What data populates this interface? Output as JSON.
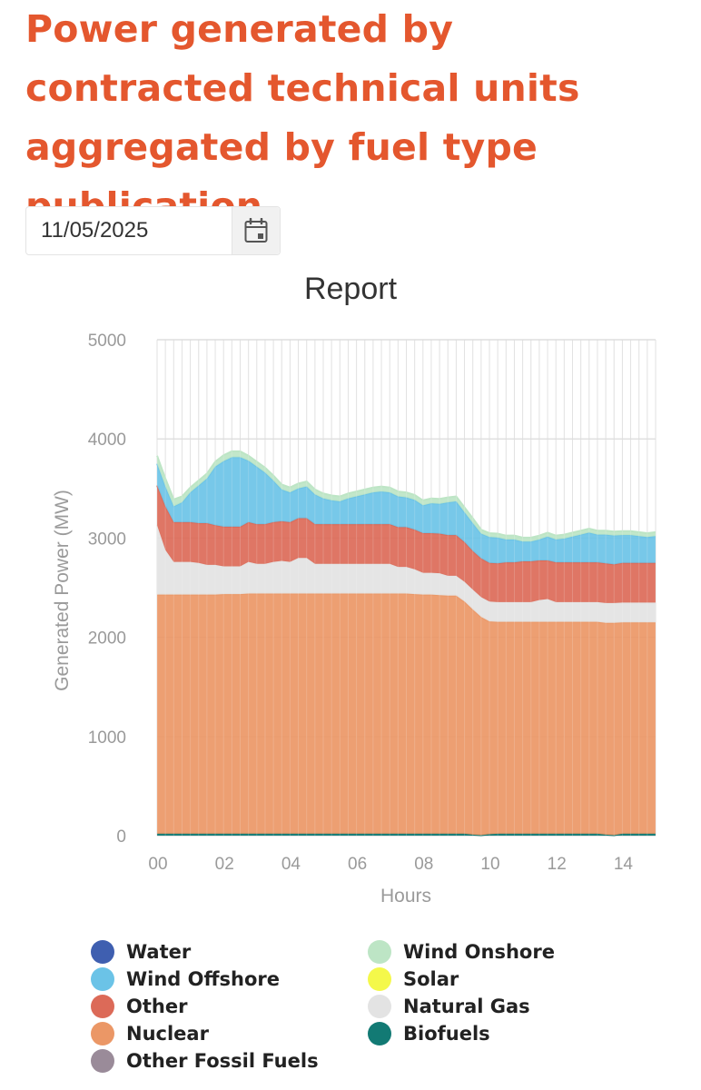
{
  "page": {
    "title": "Power generated by contracted technical units aggregated by fuel type publication"
  },
  "date_picker": {
    "value": "11/05/2025"
  },
  "chart_data": {
    "type": "area",
    "stacked": true,
    "title": "Report",
    "xlabel": "Hours",
    "ylabel": "Generated Power (MW)",
    "ylim": [
      0,
      5000
    ],
    "yticks": [
      0,
      1000,
      2000,
      3000,
      4000,
      5000
    ],
    "xlim": [
      0,
      15
    ],
    "xticks": [
      0,
      2,
      4,
      6,
      8,
      10,
      12,
      14
    ],
    "xtick_labels": [
      "00",
      "02",
      "04",
      "06",
      "08",
      "10",
      "12",
      "14"
    ],
    "x": [
      0,
      0.25,
      0.5,
      0.75,
      1,
      1.25,
      1.5,
      1.75,
      2,
      2.25,
      2.5,
      2.75,
      3,
      3.25,
      3.5,
      3.75,
      4,
      4.25,
      4.5,
      4.75,
      5,
      5.25,
      5.5,
      5.75,
      6,
      6.25,
      6.5,
      6.75,
      7,
      7.25,
      7.5,
      7.75,
      8,
      8.25,
      8.5,
      8.75,
      9,
      9.25,
      9.5,
      9.75,
      10,
      10.25,
      10.5,
      10.75,
      11,
      11.25,
      11.5,
      11.75,
      12,
      12.25,
      12.5,
      12.75,
      13,
      13.25,
      13.5,
      13.75,
      14,
      14.25,
      14.5,
      14.75,
      15
    ],
    "series": [
      {
        "name": "Water",
        "color": "#3f5fb0",
        "values": [
          0,
          0,
          0,
          0,
          0,
          0,
          0,
          0,
          0,
          0,
          0,
          0,
          0,
          0,
          0,
          0,
          0,
          0,
          0,
          0,
          0,
          0,
          0,
          0,
          0,
          0,
          0,
          0,
          0,
          0,
          0,
          0,
          0,
          0,
          0,
          0,
          0,
          0,
          0,
          0,
          0,
          0,
          0,
          0,
          0,
          0,
          0,
          0,
          0,
          0,
          0,
          0,
          0,
          0,
          0,
          0,
          0,
          0,
          0,
          0,
          0
        ]
      },
      {
        "name": "Biofuels",
        "color": "#127a74",
        "values": [
          20,
          20,
          20,
          20,
          20,
          20,
          20,
          20,
          20,
          20,
          20,
          20,
          20,
          20,
          20,
          20,
          20,
          20,
          20,
          20,
          20,
          20,
          20,
          20,
          20,
          20,
          20,
          20,
          20,
          20,
          20,
          20,
          20,
          20,
          20,
          20,
          20,
          20,
          10,
          5,
          15,
          20,
          20,
          20,
          20,
          20,
          20,
          20,
          20,
          20,
          20,
          20,
          20,
          20,
          10,
          5,
          20,
          20,
          20,
          20,
          20
        ]
      },
      {
        "name": "Other Fossil Fuels",
        "color": "#9a8b99",
        "values": [
          0,
          0,
          0,
          0,
          0,
          0,
          0,
          0,
          0,
          0,
          0,
          0,
          0,
          0,
          0,
          0,
          0,
          0,
          0,
          0,
          0,
          0,
          0,
          0,
          0,
          0,
          0,
          0,
          0,
          0,
          0,
          0,
          0,
          0,
          0,
          0,
          0,
          0,
          0,
          0,
          0,
          0,
          0,
          0,
          0,
          0,
          0,
          0,
          0,
          0,
          0,
          0,
          0,
          0,
          0,
          0,
          0,
          0,
          0,
          0,
          0
        ]
      },
      {
        "name": "Nuclear",
        "color": "#eb9766",
        "values": [
          2410,
          2410,
          2410,
          2410,
          2410,
          2410,
          2410,
          2410,
          2415,
          2415,
          2415,
          2420,
          2420,
          2420,
          2420,
          2420,
          2420,
          2420,
          2420,
          2420,
          2420,
          2420,
          2420,
          2420,
          2420,
          2420,
          2420,
          2420,
          2420,
          2420,
          2420,
          2415,
          2410,
          2410,
          2405,
          2400,
          2400,
          2340,
          2270,
          2200,
          2145,
          2135,
          2135,
          2135,
          2135,
          2135,
          2135,
          2135,
          2135,
          2135,
          2135,
          2135,
          2135,
          2135,
          2135,
          2140,
          2130,
          2130,
          2130,
          2130,
          2130
        ]
      },
      {
        "name": "Natural Gas",
        "color": "#e3e3e3",
        "values": [
          700,
          450,
          330,
          330,
          330,
          320,
          300,
          300,
          280,
          280,
          280,
          320,
          300,
          300,
          320,
          330,
          320,
          360,
          360,
          300,
          300,
          300,
          300,
          300,
          300,
          300,
          300,
          300,
          300,
          270,
          270,
          250,
          220,
          220,
          220,
          200,
          200,
          200,
          200,
          200,
          200,
          200,
          200,
          200,
          200,
          200,
          220,
          230,
          200,
          200,
          200,
          200,
          200,
          200,
          200,
          200,
          200,
          200,
          200,
          200,
          200
        ]
      },
      {
        "name": "Other",
        "color": "#dc6a58",
        "values": [
          400,
          440,
          400,
          400,
          400,
          400,
          420,
          400,
          400,
          400,
          400,
          400,
          400,
          400,
          400,
          400,
          400,
          400,
          400,
          400,
          400,
          400,
          400,
          400,
          400,
          400,
          400,
          400,
          400,
          400,
          400,
          400,
          400,
          400,
          400,
          410,
          410,
          400,
          390,
          390,
          390,
          390,
          400,
          400,
          410,
          410,
          400,
          390,
          400,
          400,
          400,
          400,
          400,
          400,
          400,
          390,
          400,
          400,
          400,
          400,
          400
        ]
      },
      {
        "name": "Wind Offshore",
        "color": "#6bc3e7",
        "values": [
          220,
          200,
          160,
          200,
          300,
          380,
          450,
          590,
          660,
          700,
          700,
          620,
          580,
          520,
          420,
          320,
          300,
          300,
          320,
          300,
          260,
          240,
          230,
          260,
          280,
          300,
          320,
          330,
          320,
          310,
          300,
          300,
          280,
          300,
          300,
          330,
          340,
          300,
          280,
          250,
          260,
          260,
          230,
          230,
          200,
          200,
          210,
          240,
          230,
          240,
          260,
          280,
          300,
          280,
          290,
          290,
          280,
          280,
          270,
          260,
          270
        ]
      },
      {
        "name": "Wind Onshore",
        "color": "#bde5c5",
        "values": [
          80,
          80,
          70,
          60,
          50,
          50,
          50,
          50,
          60,
          60,
          60,
          50,
          50,
          50,
          50,
          50,
          50,
          50,
          50,
          50,
          50,
          50,
          50,
          50,
          50,
          50,
          50,
          50,
          50,
          50,
          50,
          50,
          50,
          50,
          50,
          50,
          50,
          50,
          50,
          40,
          40,
          40,
          40,
          40,
          40,
          40,
          40,
          40,
          40,
          40,
          40,
          40,
          40,
          40,
          40,
          40,
          40,
          40,
          40,
          40,
          40
        ]
      },
      {
        "name": "Solar",
        "color": "#f4f84a",
        "values": [
          0,
          0,
          0,
          0,
          0,
          0,
          0,
          0,
          0,
          0,
          0,
          0,
          0,
          0,
          0,
          0,
          0,
          0,
          0,
          0,
          0,
          0,
          0,
          0,
          0,
          0,
          0,
          0,
          0,
          0,
          0,
          0,
          0,
          0,
          0,
          0,
          0,
          0,
          0,
          0,
          0,
          0,
          0,
          0,
          0,
          0,
          0,
          0,
          0,
          0,
          0,
          0,
          0,
          0,
          0,
          0,
          0,
          0,
          0,
          0,
          0
        ]
      }
    ],
    "legend": [
      {
        "name": "Water",
        "color": "#3f5fb0"
      },
      {
        "name": "Wind Onshore",
        "color": "#bde5c5"
      },
      {
        "name": "Wind Offshore",
        "color": "#6bc3e7"
      },
      {
        "name": "Solar",
        "color": "#f4f84a"
      },
      {
        "name": "Other",
        "color": "#dc6a58"
      },
      {
        "name": "Natural Gas",
        "color": "#e3e3e3"
      },
      {
        "name": "Nuclear",
        "color": "#eb9766"
      },
      {
        "name": "Biofuels",
        "color": "#127a74"
      },
      {
        "name": "Other Fossil Fuels",
        "color": "#9a8b99"
      }
    ]
  }
}
